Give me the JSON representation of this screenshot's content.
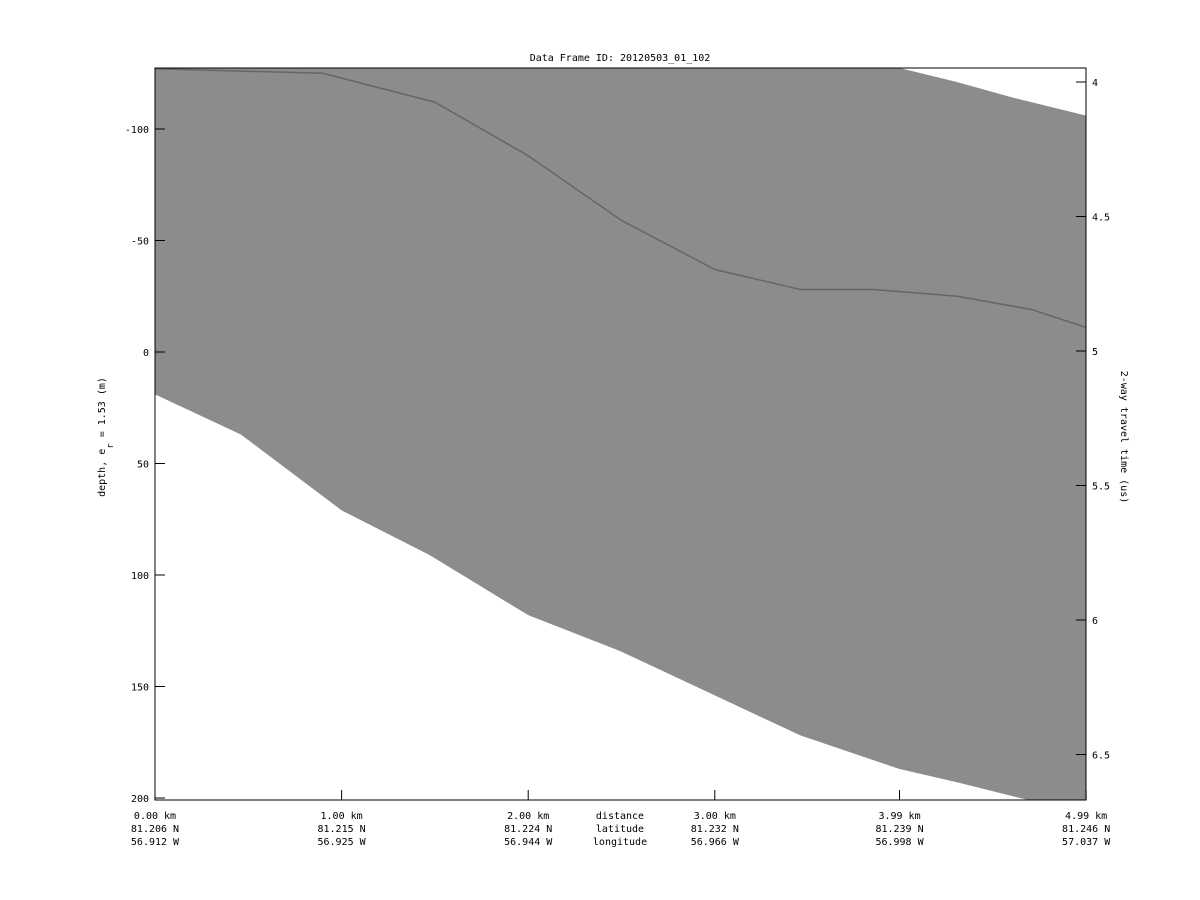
{
  "chart_data": {
    "type": "area",
    "title": "Data Frame ID: 20120503_01_102",
    "ylabel_left": "depth, e",
    "ylabel_left_sub": "r",
    "ylabel_left_suffix": " = 1.53 (m)",
    "ylabel_right": "2-way travel time (us)",
    "xlim_km": [
      0,
      4.99
    ],
    "ylim_depth_m": [
      -127.4,
      200.9
    ],
    "ylim_time_us": [
      3.948,
      6.66
    ],
    "left_ticks": [
      -100,
      -50,
      0,
      50,
      100,
      150,
      200
    ],
    "right_ticks": [
      "4",
      "4.5",
      "5",
      "5.5",
      "6",
      "6.5"
    ],
    "x_tick_rows_label": [
      "distance",
      "latitude",
      "longitude"
    ],
    "x_ticks": [
      {
        "distance": "0.00 km",
        "latitude": "81.206 N",
        "longitude": "56.912 W",
        "km": 0.0
      },
      {
        "distance": "1.00 km",
        "latitude": "81.215 N",
        "longitude": "56.925 W",
        "km": 1.0
      },
      {
        "distance": "2.00 km",
        "latitude": "81.224 N",
        "longitude": "56.944 W",
        "km": 2.0
      },
      {
        "distance": "3.00 km",
        "latitude": "81.232 N",
        "longitude": "56.966 W",
        "km": 3.0
      },
      {
        "distance": "3.99 km",
        "latitude": "81.239 N",
        "longitude": "56.998 W",
        "km": 3.99
      },
      {
        "distance": "4.99 km",
        "latitude": "81.246 N",
        "longitude": "57.037 W",
        "km": 4.99
      }
    ],
    "top_boundary": [
      [
        0,
        -127.4
      ],
      [
        3.99,
        -127.4
      ],
      [
        4.3,
        -121
      ],
      [
        4.6,
        -114
      ],
      [
        4.99,
        -106
      ]
    ],
    "bed_boundary": [
      [
        0,
        19
      ],
      [
        0.46,
        37
      ],
      [
        1.0,
        71
      ],
      [
        1.47,
        91
      ],
      [
        2.0,
        118
      ],
      [
        2.49,
        134
      ],
      [
        3.0,
        154
      ],
      [
        3.46,
        172
      ],
      [
        3.99,
        187
      ],
      [
        4.3,
        193
      ],
      [
        4.68,
        201
      ]
    ],
    "internal_layer": [
      [
        0,
        -127
      ],
      [
        0.9,
        -125
      ],
      [
        1.5,
        -112
      ],
      [
        2.0,
        -88
      ],
      [
        2.5,
        -59
      ],
      [
        3.0,
        -37
      ],
      [
        3.46,
        -28
      ],
      [
        3.85,
        -28
      ],
      [
        4.3,
        -25
      ],
      [
        4.7,
        -19
      ],
      [
        4.99,
        -11
      ]
    ],
    "colors": {
      "echogram": "#8c8c8c",
      "layer": "#555555",
      "background": "#ffffff"
    },
    "grid": false
  }
}
